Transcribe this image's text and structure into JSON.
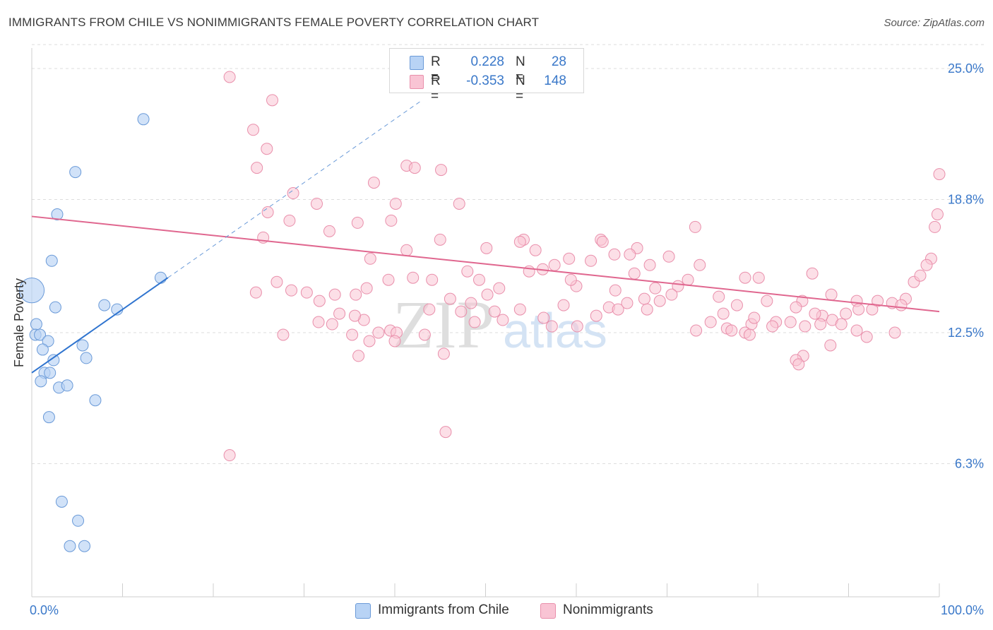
{
  "title": "IMMIGRANTS FROM CHILE VS NONIMMIGRANTS FEMALE POVERTY CORRELATION CHART",
  "source": "Source: ZipAtlas.com",
  "legend": {
    "r_label": "R =",
    "n_label": "N =",
    "series1": {
      "r": "0.228",
      "n": "28"
    },
    "series2": {
      "r": "-0.353",
      "n": "148"
    }
  },
  "bottom_legend": {
    "series1": "Immigrants from Chile",
    "series2": "Nonimmigrants"
  },
  "watermark": {
    "zip": "ZIP",
    "atlas": "atlas"
  },
  "colors": {
    "blue_fill": "#b8d3f5",
    "blue_stroke": "#6a9ad8",
    "blue_line": "#2f74cf",
    "pink_fill": "#f9c4d4",
    "pink_stroke": "#e98fab",
    "pink_line": "#e0678f",
    "tick_label": "#3a78c9",
    "grid": "#dddddd"
  },
  "chart_data": {
    "type": "scatter",
    "title": "IMMIGRANTS FROM CHILE VS NONIMMIGRANTS FEMALE POVERTY CORRELATION CHART",
    "xlabel": "",
    "ylabel": "Female Poverty",
    "xlim": [
      0,
      100
    ],
    "ylim": [
      0,
      26.2
    ],
    "x_tick_labels": [
      "0.0%",
      "100.0%"
    ],
    "y_ticks": [
      6.3,
      12.5,
      18.8,
      25.0
    ],
    "y_tick_labels": [
      "6.3%",
      "12.5%",
      "18.8%",
      "25.0%"
    ],
    "series": [
      {
        "name": "Immigrants from Chile",
        "r": 0.228,
        "n": 28,
        "trend": {
          "x0": 0,
          "y0": 10.6,
          "x1": 15,
          "y1": 15.1,
          "dashed_to_x": 43,
          "dashed_to_y": 23.5
        },
        "points": [
          [
            0.0,
            14.5,
            2.2
          ],
          [
            12.3,
            22.6,
            1
          ],
          [
            4.8,
            20.1,
            1
          ],
          [
            2.8,
            18.1,
            1
          ],
          [
            2.2,
            15.9,
            1
          ],
          [
            14.2,
            15.1,
            1
          ],
          [
            8.0,
            13.8,
            1
          ],
          [
            9.4,
            13.6,
            1
          ],
          [
            2.6,
            13.7,
            1
          ],
          [
            0.5,
            12.9,
            1
          ],
          [
            0.4,
            12.4,
            1
          ],
          [
            0.9,
            12.4,
            1
          ],
          [
            1.8,
            12.1,
            1
          ],
          [
            5.6,
            11.9,
            1
          ],
          [
            1.2,
            11.7,
            1
          ],
          [
            2.4,
            11.2,
            1
          ],
          [
            6.0,
            11.3,
            1
          ],
          [
            1.4,
            10.6,
            1
          ],
          [
            2.0,
            10.6,
            1
          ],
          [
            1.0,
            10.2,
            1
          ],
          [
            3.0,
            9.9,
            1
          ],
          [
            3.9,
            10.0,
            1
          ],
          [
            7.0,
            9.3,
            1
          ],
          [
            1.9,
            8.5,
            1
          ],
          [
            3.3,
            4.5,
            1
          ],
          [
            5.1,
            3.6,
            1
          ],
          [
            4.2,
            2.4,
            1
          ],
          [
            5.8,
            2.4,
            1
          ]
        ]
      },
      {
        "name": "Nonimmigrants",
        "r": -0.353,
        "n": 148,
        "trend": {
          "x0": 0,
          "y0": 18.0,
          "x1": 100,
          "y1": 13.5
        },
        "points": [
          [
            21.8,
            24.6
          ],
          [
            26.5,
            23.5
          ],
          [
            24.4,
            22.1
          ],
          [
            25.9,
            21.2
          ],
          [
            24.8,
            20.3
          ],
          [
            41.3,
            20.4
          ],
          [
            42.2,
            20.3
          ],
          [
            45.1,
            20.2
          ],
          [
            37.7,
            19.6
          ],
          [
            28.8,
            19.1
          ],
          [
            31.4,
            18.6
          ],
          [
            40.1,
            18.6
          ],
          [
            47.1,
            18.6
          ],
          [
            26.0,
            18.2
          ],
          [
            28.4,
            17.8
          ],
          [
            35.9,
            17.7
          ],
          [
            32.8,
            17.3
          ],
          [
            39.6,
            17.8
          ],
          [
            25.5,
            17.0
          ],
          [
            45.0,
            16.9
          ],
          [
            54.2,
            16.9
          ],
          [
            53.8,
            16.8
          ],
          [
            62.7,
            16.9
          ],
          [
            66.7,
            16.5
          ],
          [
            73.1,
            17.5
          ],
          [
            70.2,
            16.1
          ],
          [
            55.5,
            16.4
          ],
          [
            41.3,
            16.4
          ],
          [
            37.3,
            16.0
          ],
          [
            64.2,
            16.2
          ],
          [
            59.2,
            16.0
          ],
          [
            61.6,
            15.9
          ],
          [
            73.6,
            15.7
          ],
          [
            68.1,
            15.7
          ],
          [
            57.6,
            15.7
          ],
          [
            56.3,
            15.5
          ],
          [
            54.8,
            15.4
          ],
          [
            48.0,
            15.4
          ],
          [
            66.4,
            15.3
          ],
          [
            72.3,
            15.0
          ],
          [
            78.6,
            15.1
          ],
          [
            80.1,
            15.1
          ],
          [
            51.5,
            14.6
          ],
          [
            49.3,
            15.0
          ],
          [
            39.3,
            15.0
          ],
          [
            44.1,
            15.0
          ],
          [
            60.0,
            14.7
          ],
          [
            64.3,
            14.5
          ],
          [
            68.7,
            14.6
          ],
          [
            71.2,
            14.7
          ],
          [
            70.5,
            14.3
          ],
          [
            67.5,
            14.1
          ],
          [
            75.7,
            14.2
          ],
          [
            77.7,
            13.8
          ],
          [
            81.0,
            14.0
          ],
          [
            84.9,
            14.0
          ],
          [
            84.2,
            13.7
          ],
          [
            88.1,
            14.3
          ],
          [
            90.9,
            14.0
          ],
          [
            93.2,
            14.0
          ],
          [
            92.6,
            13.6
          ],
          [
            94.8,
            13.9
          ],
          [
            96.3,
            14.1
          ],
          [
            95.8,
            13.8
          ],
          [
            97.2,
            14.9
          ],
          [
            97.9,
            15.2
          ],
          [
            99.1,
            16.0
          ],
          [
            98.6,
            15.7
          ],
          [
            99.5,
            17.5
          ],
          [
            99.8,
            18.1
          ],
          [
            100.0,
            20.0
          ],
          [
            91.1,
            13.6
          ],
          [
            89.7,
            13.4
          ],
          [
            88.2,
            13.1
          ],
          [
            87.1,
            13.3
          ],
          [
            86.3,
            13.4
          ],
          [
            89.2,
            12.9
          ],
          [
            86.9,
            12.9
          ],
          [
            82.0,
            13.0
          ],
          [
            81.6,
            12.8
          ],
          [
            83.6,
            13.0
          ],
          [
            79.3,
            12.9
          ],
          [
            79.6,
            13.2
          ],
          [
            76.2,
            13.4
          ],
          [
            74.8,
            13.0
          ],
          [
            73.2,
            12.6
          ],
          [
            76.6,
            12.7
          ],
          [
            77.1,
            12.6
          ],
          [
            78.6,
            12.5
          ],
          [
            85.2,
            12.8
          ],
          [
            88.0,
            11.9
          ],
          [
            85.0,
            11.4
          ],
          [
            84.2,
            11.2
          ],
          [
            84.5,
            11.0
          ],
          [
            90.9,
            12.6
          ],
          [
            95.1,
            12.5
          ],
          [
            69.2,
            14.0
          ],
          [
            65.6,
            13.9
          ],
          [
            67.8,
            13.6
          ],
          [
            58.6,
            13.8
          ],
          [
            53.8,
            13.6
          ],
          [
            50.2,
            14.3
          ],
          [
            48.4,
            13.9
          ],
          [
            46.1,
            14.1
          ],
          [
            43.8,
            13.6
          ],
          [
            36.9,
            14.6
          ],
          [
            35.7,
            14.3
          ],
          [
            33.9,
            13.4
          ],
          [
            28.6,
            14.5
          ],
          [
            30.3,
            14.4
          ],
          [
            33.4,
            14.3
          ],
          [
            31.6,
            13.0
          ],
          [
            33.1,
            12.9
          ],
          [
            36.6,
            13.1
          ],
          [
            38.2,
            12.5
          ],
          [
            37.2,
            12.1
          ],
          [
            35.3,
            12.4
          ],
          [
            39.5,
            12.6
          ],
          [
            47.3,
            13.5
          ],
          [
            48.8,
            13.0
          ],
          [
            51.0,
            13.5
          ],
          [
            51.9,
            13.1
          ],
          [
            56.4,
            13.2
          ],
          [
            60.1,
            12.8
          ],
          [
            57.3,
            12.8
          ],
          [
            62.2,
            13.3
          ],
          [
            63.6,
            13.7
          ],
          [
            64.6,
            13.6
          ],
          [
            35.6,
            13.3
          ],
          [
            27.7,
            12.4
          ],
          [
            36.0,
            11.4
          ],
          [
            43.3,
            12.4
          ],
          [
            40.2,
            12.5
          ],
          [
            45.4,
            11.5
          ],
          [
            40.0,
            12.1
          ],
          [
            21.8,
            6.7
          ],
          [
            45.6,
            7.8
          ],
          [
            31.7,
            14.0
          ],
          [
            27.0,
            14.9
          ],
          [
            24.7,
            14.4
          ],
          [
            42.0,
            15.1
          ],
          [
            62.9,
            16.8
          ],
          [
            65.9,
            16.2
          ],
          [
            59.4,
            15.0
          ],
          [
            50.1,
            16.5
          ],
          [
            79.1,
            12.4
          ],
          [
            92.0,
            12.3
          ],
          [
            86.0,
            15.3
          ]
        ]
      }
    ]
  }
}
